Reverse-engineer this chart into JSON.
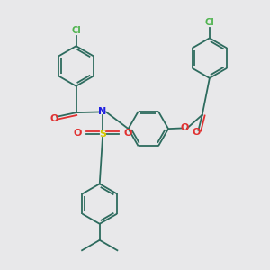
{
  "background_color": "#e8e8ea",
  "bond_color": "#2d6b5e",
  "cl_color": "#4db34d",
  "o_color": "#e03030",
  "n_color": "#2020e0",
  "s_color": "#d4c800",
  "lw": 1.3,
  "figsize": [
    3.0,
    3.0
  ],
  "dpi": 100,
  "xlim": [
    -2.5,
    5.5
  ],
  "ylim": [
    -4.5,
    4.5
  ]
}
